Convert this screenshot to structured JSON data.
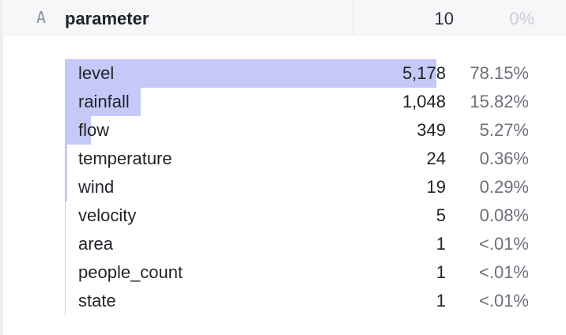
{
  "column": {
    "type_icon": "A",
    "name": "parameter",
    "distinct_count": "10",
    "null_percent": "0%"
  },
  "frequencies": [
    {
      "label": "level",
      "count": "5,178",
      "percent": "78.15%",
      "fraction": 0.7815
    },
    {
      "label": "rainfall",
      "count": "1,048",
      "percent": "15.82%",
      "fraction": 0.1582
    },
    {
      "label": "flow",
      "count": "349",
      "percent": "5.27%",
      "fraction": 0.0527
    },
    {
      "label": "temperature",
      "count": "24",
      "percent": "0.36%",
      "fraction": 0.0036
    },
    {
      "label": "wind",
      "count": "19",
      "percent": "0.29%",
      "fraction": 0.0029
    },
    {
      "label": "velocity",
      "count": "5",
      "percent": "0.08%",
      "fraction": 0.0008
    },
    {
      "label": "area",
      "count": "1",
      "percent": "<.01%",
      "fraction": 0.0001
    },
    {
      "label": "people_count",
      "count": "1",
      "percent": "<.01%",
      "fraction": 0.0001
    },
    {
      "label": "state",
      "count": "1",
      "percent": "<.01%",
      "fraction": 0.0001
    }
  ],
  "colors": {
    "bar": "#c5c9f7",
    "header_bg": "#f6f7f9",
    "muted_text": "#6b7079"
  }
}
